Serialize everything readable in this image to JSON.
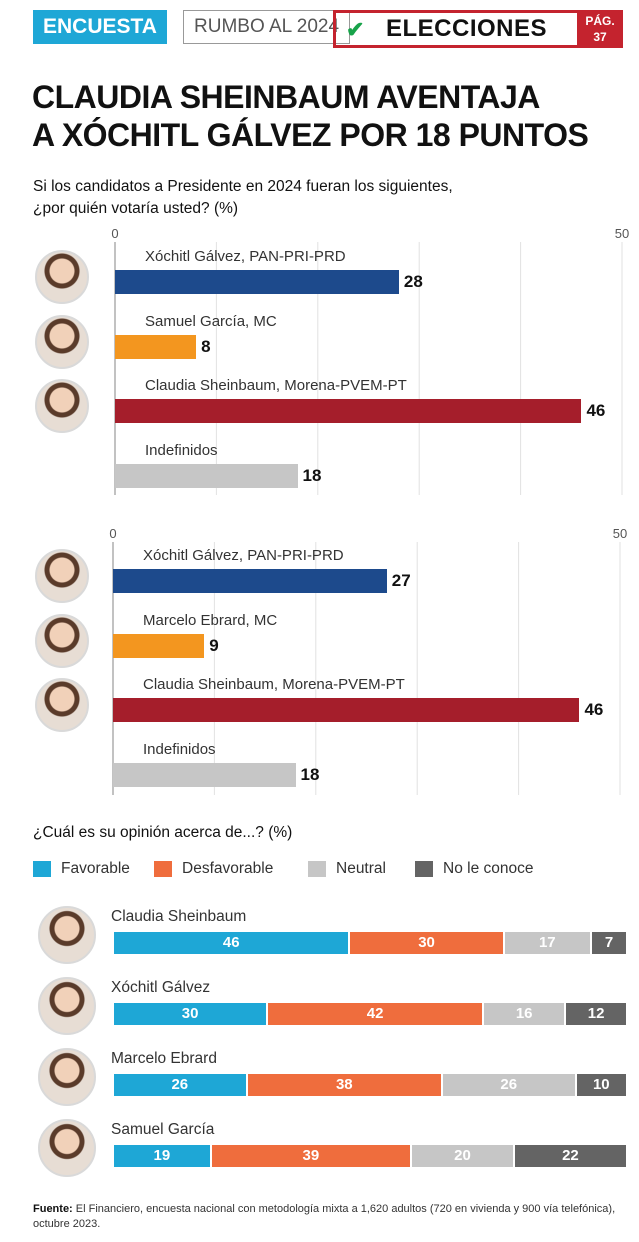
{
  "header": {
    "tag": "ENCUESTA",
    "section": "RUMBO AL 2024",
    "logo": "ELECCIONES",
    "page": "PÁG. 37"
  },
  "title_line1": "CLAUDIA SHEINBAUM AVENTAJA",
  "title_line2": "A XÓCHITL GÁLVEZ POR 18 PUNTOS",
  "question_line1": "Si los candidatos a Presidente en 2024 fueran los siguientes,",
  "question_line2": "¿por quién votaría usted?  (%)",
  "opinion_question": "¿Cuál es su opinión acerca de...? (%)",
  "source_label": "Fuente:",
  "source_text": "El Financiero, encuesta nacional con metodología mixta a 1,620 adultos (720 en vivienda y 900 vía telefónica), octubre 2023.",
  "colors": {
    "pan": "#1d4a8c",
    "mc": "#f3961f",
    "morena": "#a51e2b",
    "undecided": "#c6c6c6",
    "favorable": "#1ea7d6",
    "unfavorable": "#ef6d3d",
    "neutral": "#c6c6c6",
    "unknown": "#646464"
  },
  "chart_data": [
    {
      "type": "bar",
      "orientation": "horizontal",
      "xlim": [
        0,
        50
      ],
      "tick_labels": [
        "0",
        "50"
      ],
      "grid": true,
      "categories": [
        "Xóchitl Gálvez, PAN-PRI-PRD",
        "Samuel García, MC",
        "Claudia Sheinbaum, Morena-PVEM-PT",
        "Indefinidos"
      ],
      "values": [
        28,
        8,
        46,
        18
      ],
      "colors": [
        "#1d4a8c",
        "#f3961f",
        "#a51e2b",
        "#c6c6c6"
      ]
    },
    {
      "type": "bar",
      "orientation": "horizontal",
      "xlim": [
        0,
        50
      ],
      "tick_labels": [
        "0",
        "50"
      ],
      "grid": true,
      "categories": [
        "Xóchitl Gálvez, PAN-PRI-PRD",
        "Marcelo Ebrard, MC",
        "Claudia Sheinbaum, Morena-PVEM-PT",
        "Indefinidos"
      ],
      "values": [
        27,
        9,
        46,
        18
      ],
      "colors": [
        "#1d4a8c",
        "#f3961f",
        "#a51e2b",
        "#c6c6c6"
      ]
    },
    {
      "type": "bar",
      "orientation": "horizontal",
      "stacked": true,
      "legend": "top",
      "categories": [
        "Claudia Sheinbaum",
        "Xóchitl Gálvez",
        "Marcelo Ebrard",
        "Samuel García"
      ],
      "series": [
        {
          "name": "Favorable",
          "values": [
            46,
            30,
            26,
            19
          ],
          "color": "#1ea7d6"
        },
        {
          "name": "Desfavorable",
          "values": [
            30,
            42,
            38,
            39
          ],
          "color": "#ef6d3d"
        },
        {
          "name": "Neutral",
          "values": [
            17,
            16,
            26,
            20
          ],
          "color": "#c6c6c6"
        },
        {
          "name": "No le conoce",
          "values": [
            7,
            12,
            10,
            22
          ],
          "color": "#646464"
        }
      ]
    }
  ]
}
